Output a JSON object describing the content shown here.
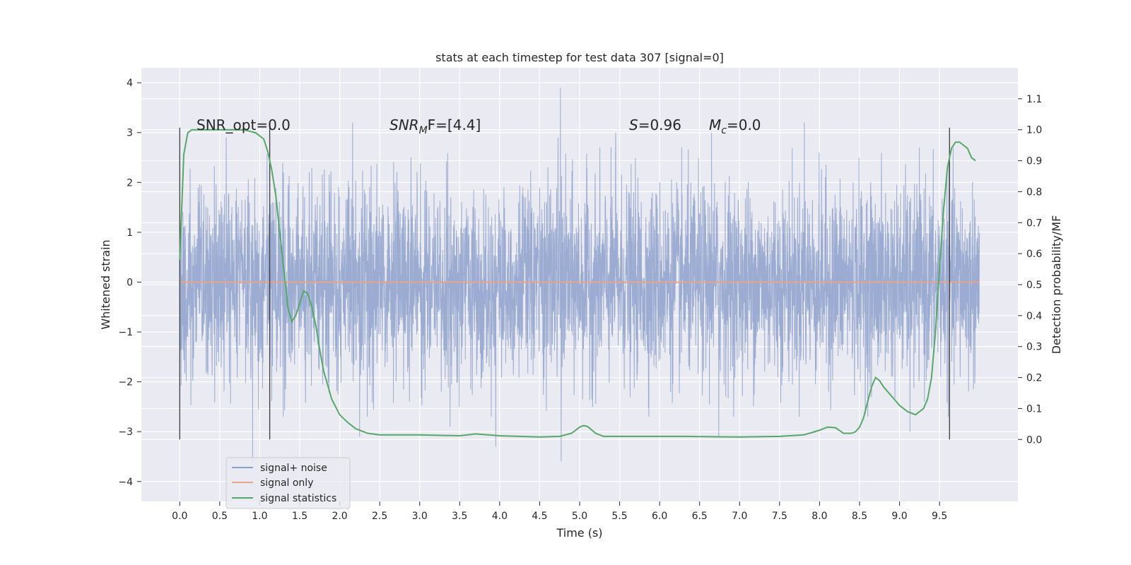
{
  "chart_data": {
    "type": "line",
    "title": "stats at each timestep for test data 307 [signal=0]",
    "xlabel": "Time (s)",
    "ylabel": "Whitened strain",
    "ylabel_right": "Detection probability/MF",
    "xlim": [
      -0.48,
      10.48
    ],
    "ylim": [
      -4.4,
      4.3
    ],
    "ylim_right": [
      -0.2,
      1.2
    ],
    "x_ticks": [
      "0.0",
      "0.5",
      "1.0",
      "1.5",
      "2.0",
      "2.5",
      "3.0",
      "3.5",
      "4.0",
      "4.5",
      "5.0",
      "5.5",
      "6.0",
      "6.5",
      "7.0",
      "7.5",
      "8.0",
      "8.5",
      "9.0",
      "9.5"
    ],
    "y_ticks": [
      "−4",
      "−3",
      "−2",
      "−1",
      "0",
      "1",
      "2",
      "3",
      "4"
    ],
    "y_ticks_right": [
      "0.0",
      "0.1",
      "0.2",
      "0.3",
      "0.4",
      "0.5",
      "0.6",
      "0.7",
      "0.8",
      "0.9",
      "1.0",
      "1.1"
    ],
    "grid": true,
    "legend_position": "lower-left",
    "annotations": {
      "snr_opt": "SNR_opt=0.0",
      "snr_mf_base": "SNR",
      "snr_mf_sub": "M",
      "snr_mf_tail": "F=[4.4]",
      "s_sym": "S",
      "s_val": "=0.96",
      "mc_sym": "M",
      "mc_sub": "c",
      "mc_val": "=0.0"
    },
    "vlines_x": [
      0.0,
      1.125,
      9.625
    ],
    "series": [
      {
        "name": "signal+ noise",
        "color": "#8da0cb",
        "description": "whitened noise, ~Gaussian, sigma≈1, t from 0 to 10 s",
        "x_range": [
          0.0,
          10.0
        ],
        "spikes": [
          {
            "x": 0.58,
            "y": 2.9
          },
          {
            "x": 0.91,
            "y": -3.6
          },
          {
            "x": 1.62,
            "y": 2.2
          },
          {
            "x": 2.16,
            "y": 3.2
          },
          {
            "x": 2.25,
            "y": -3.1
          },
          {
            "x": 3.38,
            "y": -2.9
          },
          {
            "x": 3.95,
            "y": -3.3
          },
          {
            "x": 4.73,
            "y": 2.9
          },
          {
            "x": 4.76,
            "y": 3.9
          },
          {
            "x": 4.77,
            "y": -3.6
          },
          {
            "x": 5.45,
            "y": 3.0
          },
          {
            "x": 6.65,
            "y": 3.0
          },
          {
            "x": 6.74,
            "y": -3.1
          },
          {
            "x": 7.81,
            "y": 3.2
          },
          {
            "x": 9.13,
            "y": -3.0
          }
        ]
      },
      {
        "name": "signal only",
        "color": "#e8a58c",
        "x": [
          0.0,
          10.0
        ],
        "y": [
          0.0,
          0.0
        ]
      },
      {
        "name": "signal statistics",
        "color": "#55a868",
        "axis": "right",
        "x": [
          0.0,
          0.05,
          0.1,
          0.15,
          0.2,
          0.3,
          0.5,
          0.8,
          0.95,
          1.05,
          1.1,
          1.15,
          1.2,
          1.3,
          1.35,
          1.4,
          1.45,
          1.5,
          1.55,
          1.6,
          1.65,
          1.7,
          1.75,
          1.8,
          1.9,
          2.0,
          2.1,
          2.2,
          2.35,
          2.5,
          3.0,
          3.5,
          3.7,
          4.0,
          4.5,
          4.75,
          4.9,
          5.0,
          5.05,
          5.1,
          5.2,
          5.3,
          5.5,
          6.0,
          6.3,
          7.0,
          7.5,
          7.8,
          7.9,
          8.0,
          8.1,
          8.2,
          8.3,
          8.4,
          8.45,
          8.5,
          8.55,
          8.6,
          8.65,
          8.7,
          8.75,
          8.8,
          8.9,
          9.0,
          9.1,
          9.2,
          9.3,
          9.35,
          9.4,
          9.45,
          9.5,
          9.55,
          9.6,
          9.65,
          9.7,
          9.75,
          9.8,
          9.85,
          9.9,
          9.95
        ],
        "y": [
          0.58,
          0.92,
          0.99,
          1.0,
          1.0,
          1.0,
          1.0,
          1.0,
          0.99,
          0.97,
          0.93,
          0.87,
          0.79,
          0.55,
          0.43,
          0.38,
          0.4,
          0.44,
          0.48,
          0.47,
          0.43,
          0.37,
          0.29,
          0.22,
          0.13,
          0.08,
          0.055,
          0.035,
          0.02,
          0.015,
          0.015,
          0.012,
          0.018,
          0.012,
          0.008,
          0.01,
          0.02,
          0.04,
          0.045,
          0.042,
          0.02,
          0.01,
          0.01,
          0.01,
          0.01,
          0.008,
          0.01,
          0.015,
          0.022,
          0.03,
          0.04,
          0.038,
          0.02,
          0.02,
          0.025,
          0.04,
          0.07,
          0.12,
          0.17,
          0.2,
          0.19,
          0.17,
          0.14,
          0.11,
          0.09,
          0.08,
          0.1,
          0.13,
          0.2,
          0.35,
          0.55,
          0.74,
          0.88,
          0.94,
          0.96,
          0.96,
          0.95,
          0.94,
          0.91,
          0.9
        ]
      }
    ]
  }
}
